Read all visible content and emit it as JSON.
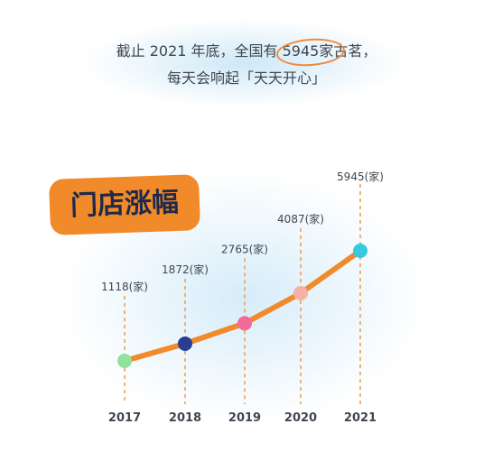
{
  "header": {
    "line1_pre": "截止 2021 年底，全国有 ",
    "line1_highlight": "5945家",
    "line1_post": "古茗，",
    "line2": "每天会响起「天天开心」"
  },
  "tag_label": "门店涨幅",
  "colors": {
    "line": "#f08a2b",
    "dash": "#f0a24a",
    "text": "#3f4650",
    "point_colors": [
      "#8fe39a",
      "#2a3d8f",
      "#f06a9a",
      "#f5b0a8",
      "#36c9e0"
    ]
  },
  "chart_data": {
    "type": "line",
    "categories": [
      "2017",
      "2018",
      "2019",
      "2020",
      "2021"
    ],
    "values": [
      1118,
      1872,
      2765,
      4087,
      5945
    ],
    "value_labels": [
      "1118(家)",
      "1872(家)",
      "2765(家)",
      "4087(家)",
      "5945(家)"
    ],
    "title": "门店涨幅",
    "xlabel": "",
    "ylabel": ""
  }
}
